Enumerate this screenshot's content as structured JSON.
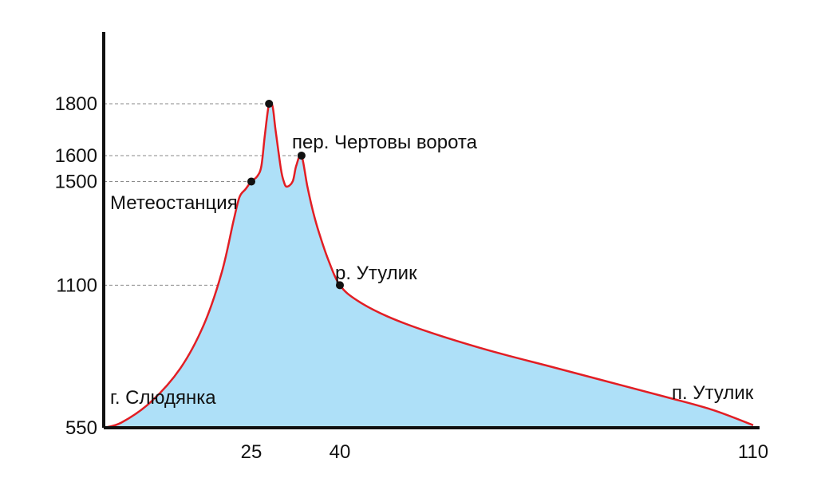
{
  "chart_data": {
    "type": "area",
    "title": "",
    "xlabel": "",
    "ylabel": "",
    "xlim": [
      0,
      110
    ],
    "ylim": [
      550,
      2000
    ],
    "x_ticks": [
      25,
      40,
      110
    ],
    "y_ticks": [
      550,
      1100,
      1500,
      1600,
      1800
    ],
    "colors": {
      "line": "#e21e24",
      "fill": "#aee0f8",
      "axis": "#111111",
      "guide": "#8a8a8a",
      "marker": "#111111"
    },
    "grid": false,
    "series": [
      {
        "x": [
          0,
          3,
          8,
          13,
          17,
          20,
          22,
          23,
          24,
          25,
          26,
          26.7,
          27.3,
          28,
          28.6,
          29.1,
          30,
          30.5,
          31,
          32,
          32.6,
          33.5,
          34.5,
          35.5,
          36.5,
          38,
          40,
          43,
          48,
          55,
          65,
          75,
          85,
          95,
          103,
          110
        ],
        "y": [
          550,
          570,
          650,
          780,
          950,
          1150,
          1350,
          1440,
          1470,
          1500,
          1520,
          1560,
          1680,
          1800,
          1790,
          1700,
          1550,
          1500,
          1480,
          1500,
          1560,
          1600,
          1480,
          1380,
          1300,
          1200,
          1100,
          1040,
          980,
          920,
          850,
          790,
          730,
          670,
          620,
          560
        ]
      }
    ],
    "points": [
      {
        "x": 25,
        "y": 1500,
        "label": "Метеостанция"
      },
      {
        "x": 28,
        "y": 1800,
        "label": ""
      },
      {
        "x": 33.5,
        "y": 1600,
        "label": "пер. Чертовы ворота"
      },
      {
        "x": 40,
        "y": 1100,
        "label": "р. Утулик"
      }
    ],
    "annotations": [
      {
        "text": "г. Слюдянка"
      },
      {
        "text": "п. Утулик"
      }
    ]
  }
}
